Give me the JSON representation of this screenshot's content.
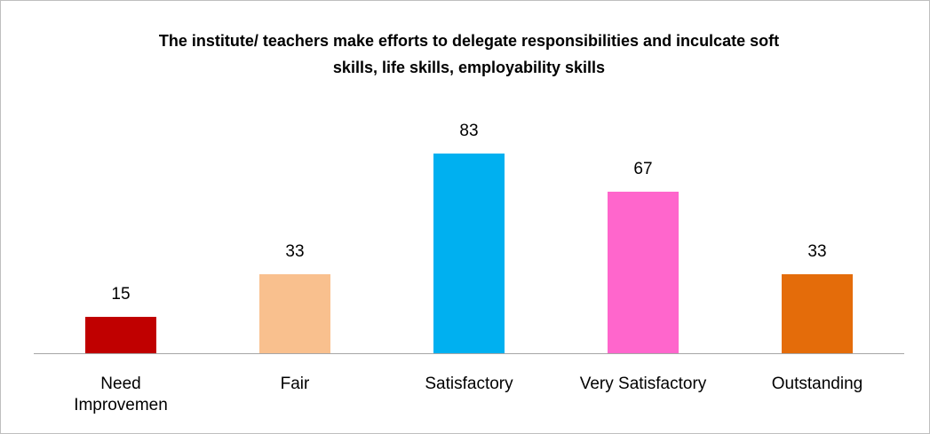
{
  "chart_data": {
    "type": "bar",
    "title": "The institute/ teachers make efforts to delegate responsibilities and inculcate soft skills, life skills, employability skills",
    "categories": [
      "Need Improvemen",
      "Fair",
      "Satisfactory",
      "Very Satisfactory",
      "Outstanding"
    ],
    "values": [
      15,
      33,
      83,
      67,
      33
    ],
    "colors": [
      "#c00000",
      "#f9c08e",
      "#00b0f0",
      "#ff66cc",
      "#e46c0a"
    ]
  }
}
